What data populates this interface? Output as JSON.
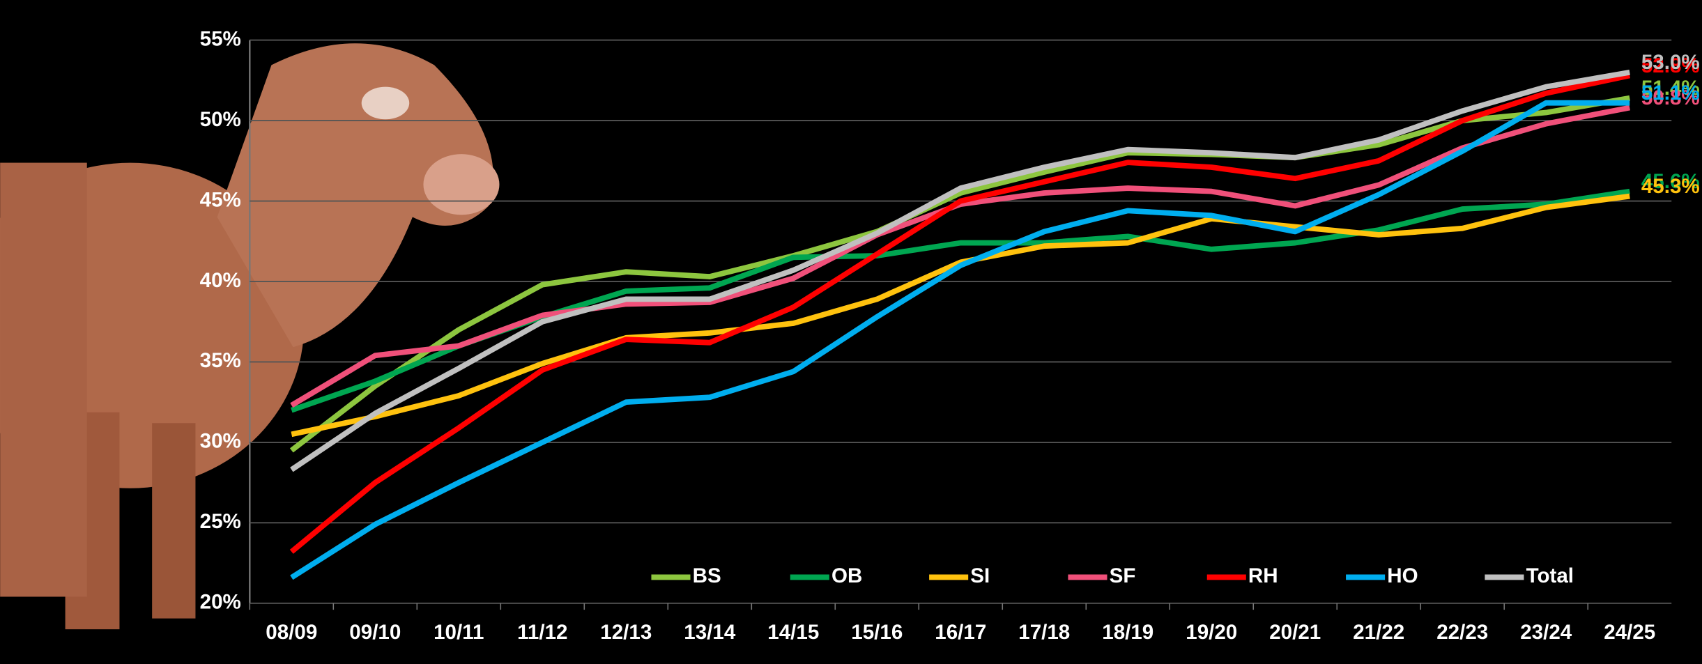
{
  "chart_data": {
    "type": "line",
    "categories": [
      "08/09",
      "09/10",
      "10/11",
      "11/12",
      "12/13",
      "13/14",
      "14/15",
      "15/16",
      "16/17",
      "17/18",
      "18/19",
      "19/20",
      "20/21",
      "21/22",
      "22/23",
      "23/24",
      "24/25"
    ],
    "ylim": [
      20,
      55
    ],
    "yticks": [
      {
        "value": 20,
        "label": "20%"
      },
      {
        "value": 25,
        "label": "25%"
      },
      {
        "value": 30,
        "label": "30%"
      },
      {
        "value": 35,
        "label": "35%"
      },
      {
        "value": 40,
        "label": "40%"
      },
      {
        "value": 45,
        "label": "45%"
      },
      {
        "value": 50,
        "label": "50%"
      },
      {
        "value": 55,
        "label": "55%"
      }
    ],
    "grid": true,
    "legend": "bottom",
    "series": [
      {
        "name": "BS",
        "color": "#8dc63f",
        "values": [
          29.5,
          33.5,
          37,
          39.8,
          40.6,
          40.3,
          41.6,
          43.1,
          45.5,
          46.8,
          48.0,
          47.9,
          47.7,
          48.5,
          50.0,
          50.5,
          51.4
        ],
        "value_labels": [
          null,
          null,
          null,
          null,
          null,
          null,
          null,
          null,
          null,
          null,
          null,
          null,
          null,
          null,
          null,
          null,
          "51.4%"
        ]
      },
      {
        "name": "OB",
        "color": "#00a651",
        "values": [
          32,
          33.8,
          36,
          37.8,
          39.4,
          39.6,
          41.5,
          41.6,
          42.4,
          42.4,
          42.8,
          42,
          42.4,
          43.2,
          44.5,
          44.8,
          45.6
        ],
        "value_labels": [
          null,
          null,
          null,
          null,
          null,
          null,
          null,
          null,
          null,
          null,
          null,
          null,
          null,
          null,
          null,
          null,
          "45.6%"
        ]
      },
      {
        "name": "SI",
        "color": "#ffc20e",
        "values": [
          30.5,
          31.6,
          32.9,
          34.9,
          36.5,
          36.8,
          37.4,
          38.9,
          41.2,
          42.2,
          42.4,
          43.9,
          43.4,
          42.9,
          43.3,
          44.6,
          45.3
        ],
        "value_labels": [
          null,
          null,
          null,
          null,
          null,
          null,
          null,
          null,
          null,
          null,
          null,
          null,
          null,
          null,
          null,
          null,
          "45.3%"
        ]
      },
      {
        "name": "SF",
        "color": "#f0507a",
        "values": [
          32.3,
          35.4,
          36,
          37.9,
          38.6,
          38.7,
          40.2,
          42.9,
          44.8,
          45.5,
          45.8,
          45.6,
          44.7,
          46,
          48.3,
          49.8,
          50.8
        ],
        "value_labels": [
          null,
          null,
          null,
          null,
          null,
          null,
          null,
          null,
          null,
          null,
          null,
          null,
          null,
          null,
          null,
          null,
          "50.8%"
        ]
      },
      {
        "name": "RH",
        "color": "#ff0000",
        "values": [
          23.2,
          27.5,
          30.9,
          34.5,
          36.4,
          36.2,
          38.4,
          41.7,
          45.0,
          46.2,
          47.4,
          47.1,
          46.4,
          47.5,
          50.0,
          51.7,
          52.8
        ],
        "value_labels": [
          null,
          null,
          null,
          null,
          null,
          null,
          null,
          null,
          null,
          null,
          null,
          null,
          null,
          null,
          null,
          null,
          "52.8%"
        ]
      },
      {
        "name": "HO",
        "color": "#00aeef",
        "values": [
          21.6,
          24.9,
          27.5,
          30,
          32.5,
          32.8,
          34.4,
          37.8,
          41,
          43.1,
          44.4,
          44.1,
          43.1,
          45.4,
          48.1,
          51.1,
          51.1
        ],
        "value_labels": [
          null,
          null,
          null,
          null,
          null,
          null,
          null,
          null,
          null,
          null,
          null,
          null,
          null,
          null,
          null,
          null,
          "51.1%"
        ]
      },
      {
        "name": "Total",
        "color": "#c0c0c0",
        "values": [
          28.3,
          31.8,
          34.6,
          37.5,
          38.9,
          38.9,
          40.7,
          43.0,
          45.8,
          47.1,
          48.2,
          48.0,
          47.7,
          48.8,
          50.6,
          52.1,
          53.0
        ],
        "value_labels": [
          null,
          null,
          null,
          null,
          null,
          null,
          null,
          null,
          null,
          null,
          null,
          null,
          null,
          null,
          null,
          null,
          "53.0%"
        ]
      }
    ]
  }
}
